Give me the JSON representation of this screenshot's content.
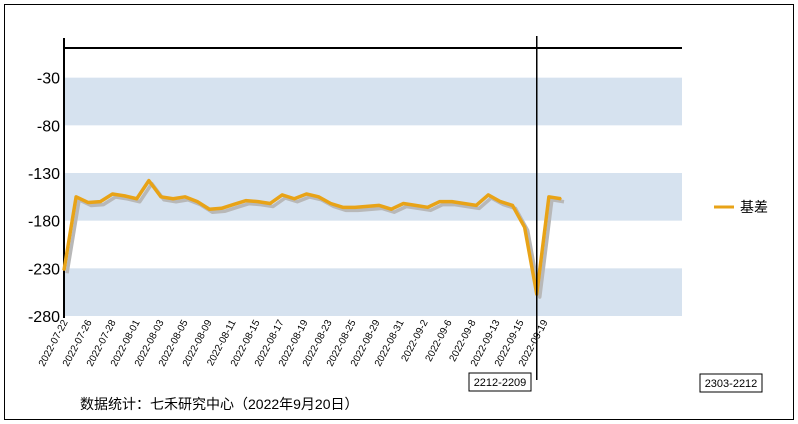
{
  "chart_data": {
    "type": "line",
    "ylim": [
      -280,
      20
    ],
    "yticks": [
      -30,
      -80,
      -130,
      -180,
      -230,
      -280
    ],
    "x_tick_labels": [
      "2022-07-22",
      "2022-07-26",
      "2022-07-28",
      "2022-08-01",
      "2022-08-03",
      "2022-08-05",
      "2022-08-09",
      "2022-08-11",
      "2022-08-15",
      "2022-08-17",
      "2022-08-19",
      "2022-08-23",
      "2022-08-25",
      "2022-08-29",
      "2022-08-31",
      "2022-09-2",
      "2022-09-6",
      "2022-09-8",
      "2022-09-13",
      "2022-09-15",
      "2022-09-19"
    ],
    "series": [
      {
        "name": "基差",
        "color": "#e8a317",
        "values": [
          -232,
          -155,
          -161,
          -160,
          -152,
          -154,
          -157,
          -138,
          -155,
          -157,
          -155,
          -160,
          -168,
          -167,
          -163,
          -159,
          -160,
          -162,
          -153,
          -157,
          -152,
          -155,
          -162,
          -166,
          -166,
          -165,
          -164,
          -168,
          -162,
          -164,
          -166,
          -160,
          -160,
          -162,
          -164,
          -153,
          -160,
          -164,
          -187,
          -257,
          -155,
          -157
        ]
      }
    ],
    "bands": [
      [
        -30,
        -80
      ],
      [
        -130,
        -180
      ],
      [
        -230,
        -280
      ]
    ],
    "band_color": "#d6e2ef",
    "grid": false,
    "legend": "right",
    "vertical_marker_index": 39,
    "marker_labels": [
      "2212-2209",
      "2303-2212"
    ],
    "source_note": "数据统计：七禾研究中心（2022年9月20日）"
  }
}
